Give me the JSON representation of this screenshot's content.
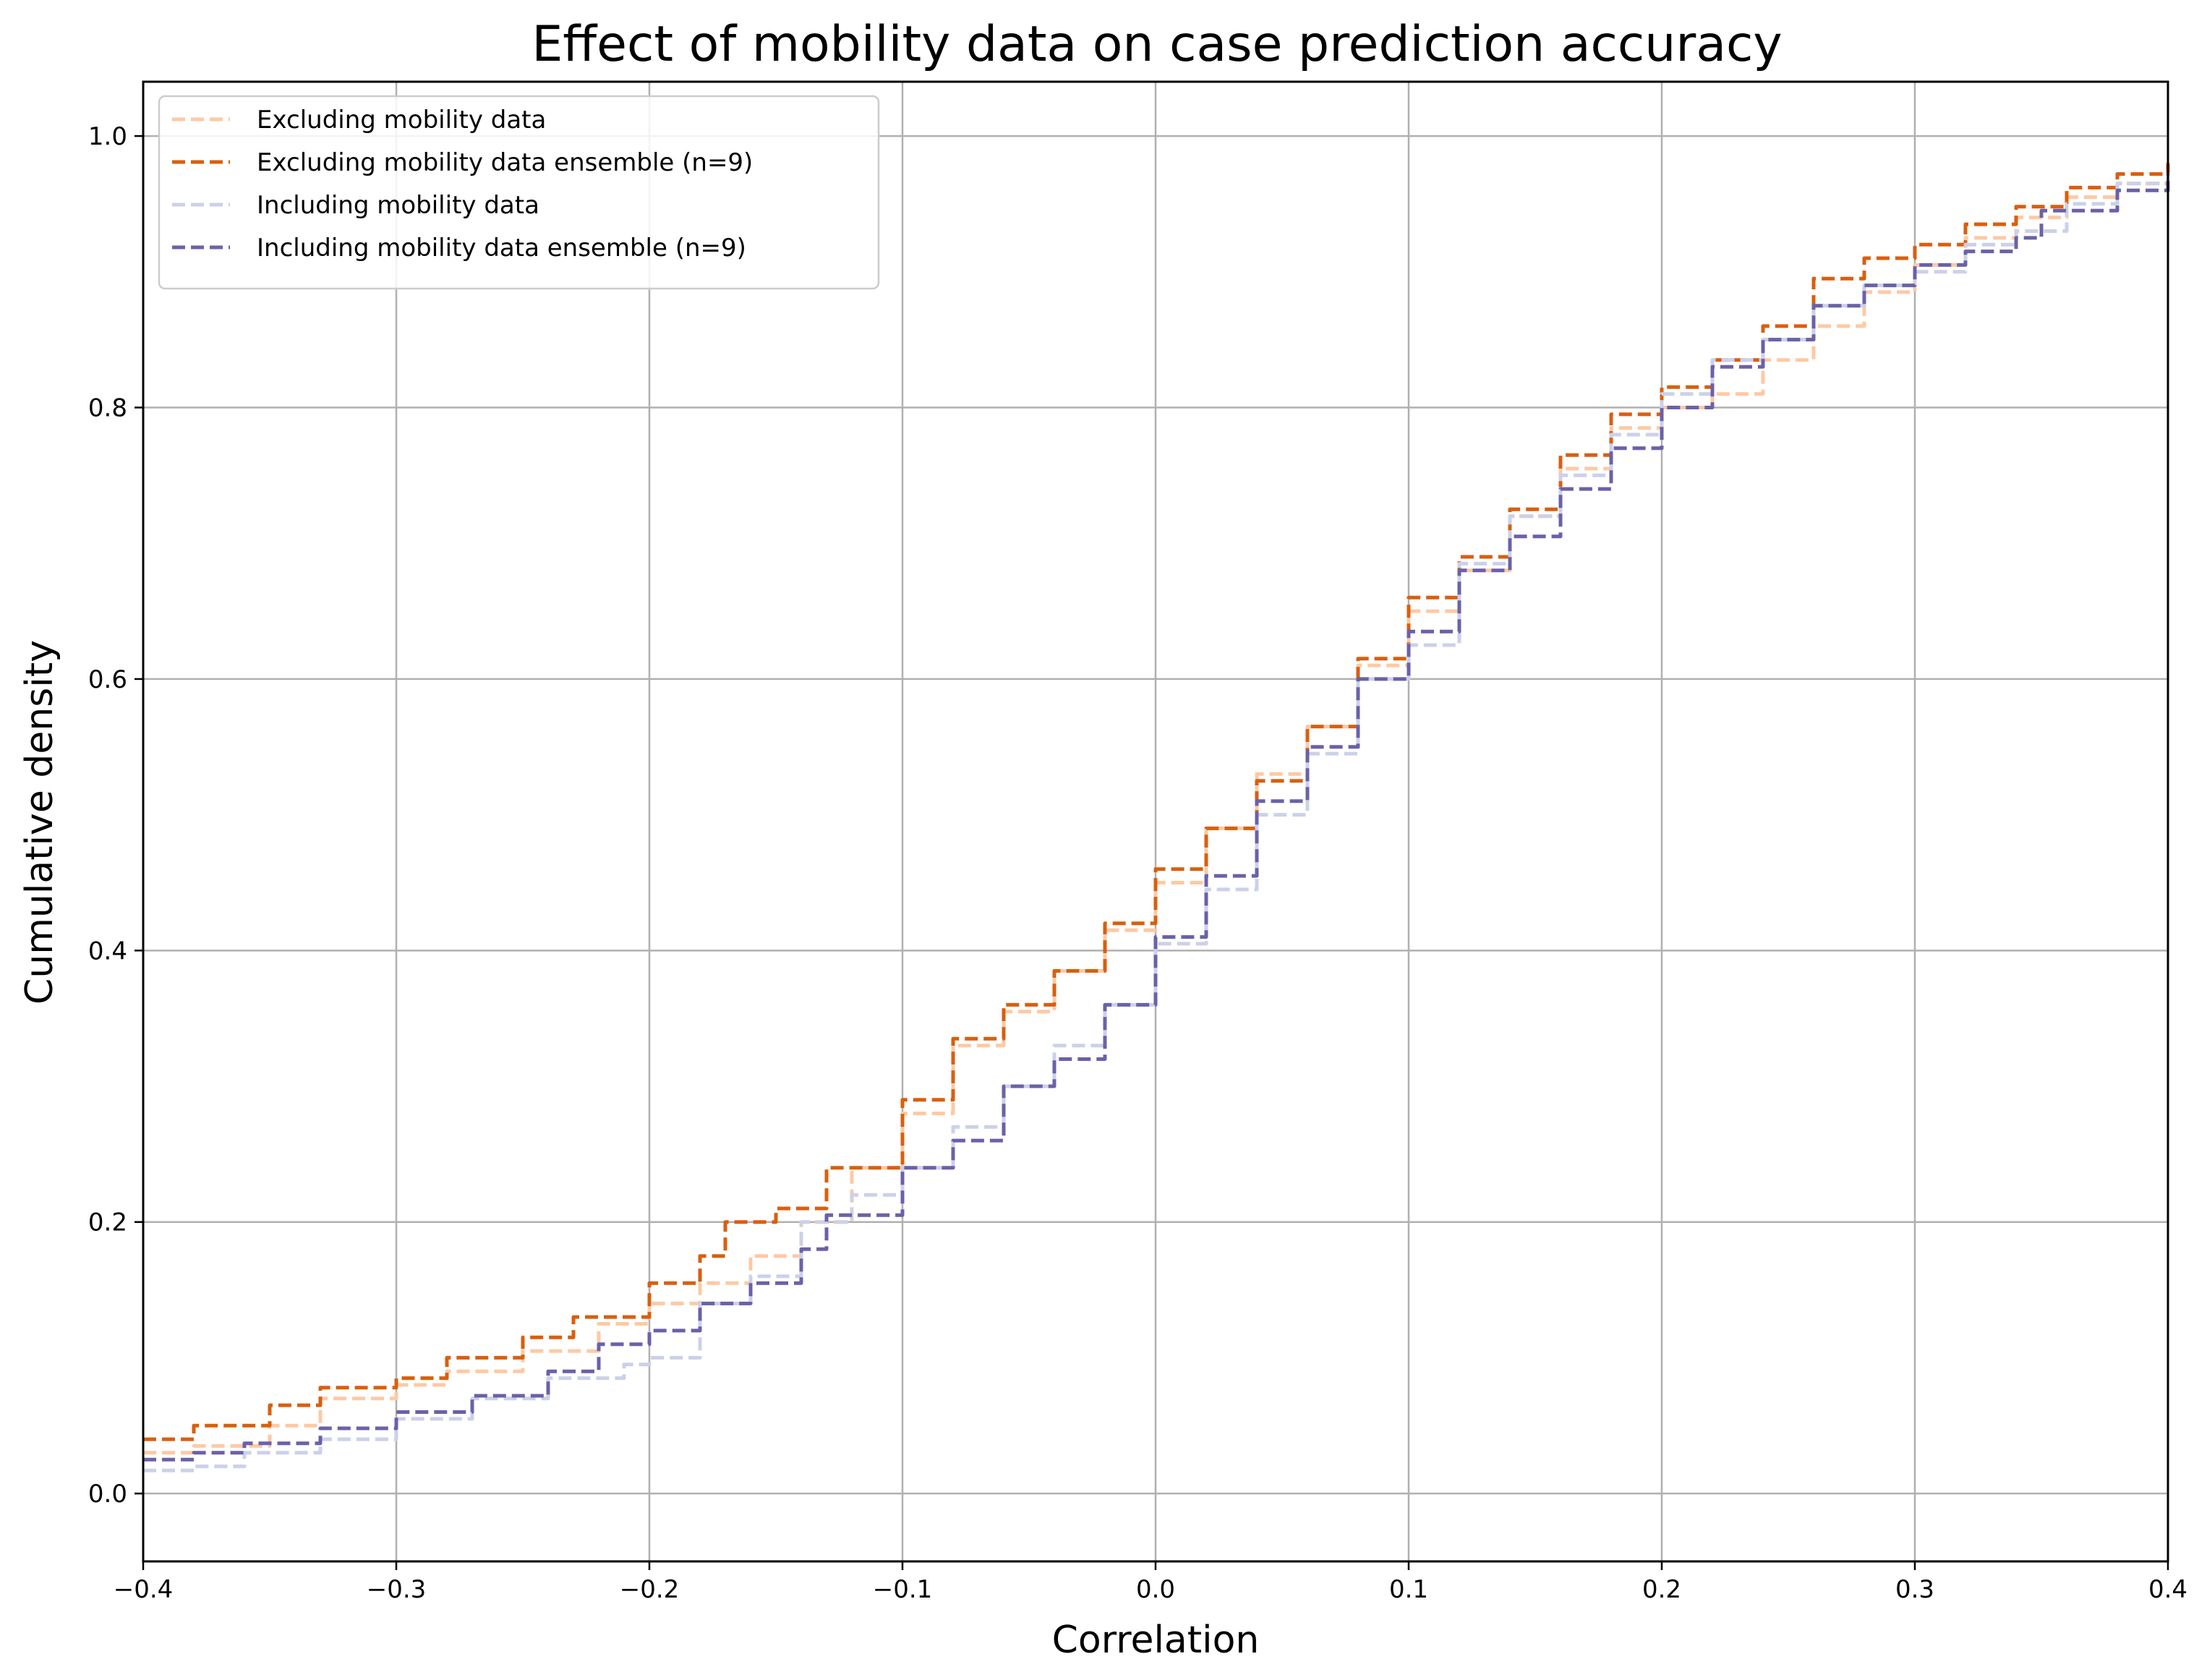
{
  "chart_data": {
    "type": "line",
    "title": "Effect of mobility data on case prediction accuracy",
    "xlabel": "Correlation",
    "ylabel": "Cumulative density",
    "xlim": [
      -0.4,
      0.4
    ],
    "ylim": [
      -0.05,
      1.04
    ],
    "x_ticks": [
      -0.4,
      -0.3,
      -0.2,
      -0.1,
      0.0,
      0.1,
      0.2,
      0.3,
      0.4
    ],
    "x_tick_labels": [
      "−0.4",
      "−0.3",
      "−0.2",
      "−0.1",
      "0.0",
      "0.1",
      "0.2",
      "0.3",
      "0.4"
    ],
    "y_ticks": [
      0.0,
      0.2,
      0.4,
      0.6,
      0.8,
      1.0
    ],
    "y_tick_labels": [
      "0.0",
      "0.2",
      "0.4",
      "0.6",
      "0.8",
      "1.0"
    ],
    "grid": true,
    "legend_position": "top-left",
    "series": [
      {
        "name": "Excluding mobility data",
        "color": "#fdc9a5",
        "style": "dashed",
        "x": [
          -0.4,
          -0.38,
          -0.35,
          -0.33,
          -0.3,
          -0.28,
          -0.25,
          -0.22,
          -0.2,
          -0.18,
          -0.16,
          -0.14,
          -0.12,
          -0.1,
          -0.08,
          -0.06,
          -0.04,
          -0.02,
          0.0,
          0.02,
          0.04,
          0.06,
          0.08,
          0.1,
          0.12,
          0.14,
          0.16,
          0.18,
          0.2,
          0.22,
          0.24,
          0.26,
          0.28,
          0.3,
          0.32,
          0.34,
          0.36,
          0.38,
          0.4
        ],
        "y": [
          0.03,
          0.035,
          0.05,
          0.07,
          0.08,
          0.09,
          0.105,
          0.125,
          0.14,
          0.155,
          0.175,
          0.2,
          0.24,
          0.28,
          0.33,
          0.355,
          0.385,
          0.415,
          0.45,
          0.49,
          0.53,
          0.565,
          0.61,
          0.65,
          0.68,
          0.72,
          0.755,
          0.785,
          0.8,
          0.81,
          0.835,
          0.86,
          0.885,
          0.905,
          0.925,
          0.94,
          0.955,
          0.965,
          0.975
        ]
      },
      {
        "name": "Excluding mobility data ensemble (n=9)",
        "color": "#d95f0e",
        "style": "dashed",
        "x": [
          -0.4,
          -0.38,
          -0.35,
          -0.33,
          -0.3,
          -0.28,
          -0.25,
          -0.23,
          -0.2,
          -0.18,
          -0.17,
          -0.15,
          -0.13,
          -0.1,
          -0.08,
          -0.06,
          -0.04,
          -0.02,
          0.0,
          0.02,
          0.04,
          0.06,
          0.08,
          0.1,
          0.12,
          0.14,
          0.16,
          0.18,
          0.2,
          0.22,
          0.24,
          0.26,
          0.28,
          0.3,
          0.32,
          0.34,
          0.36,
          0.38,
          0.4
        ],
        "y": [
          0.04,
          0.05,
          0.065,
          0.078,
          0.085,
          0.1,
          0.115,
          0.13,
          0.155,
          0.175,
          0.2,
          0.21,
          0.24,
          0.29,
          0.335,
          0.36,
          0.385,
          0.42,
          0.46,
          0.49,
          0.525,
          0.565,
          0.615,
          0.66,
          0.69,
          0.725,
          0.765,
          0.795,
          0.815,
          0.835,
          0.86,
          0.895,
          0.91,
          0.92,
          0.935,
          0.948,
          0.962,
          0.972,
          0.98
        ]
      },
      {
        "name": "Including mobility data",
        "color": "#cbd1e8",
        "style": "dashed",
        "x": [
          -0.4,
          -0.38,
          -0.36,
          -0.33,
          -0.3,
          -0.27,
          -0.24,
          -0.21,
          -0.2,
          -0.18,
          -0.16,
          -0.14,
          -0.12,
          -0.1,
          -0.08,
          -0.06,
          -0.04,
          -0.02,
          0.0,
          0.02,
          0.04,
          0.06,
          0.08,
          0.1,
          0.12,
          0.14,
          0.16,
          0.18,
          0.2,
          0.22,
          0.24,
          0.26,
          0.28,
          0.3,
          0.32,
          0.34,
          0.36,
          0.38,
          0.4
        ],
        "y": [
          0.017,
          0.02,
          0.03,
          0.04,
          0.055,
          0.07,
          0.085,
          0.095,
          0.1,
          0.14,
          0.16,
          0.2,
          0.22,
          0.24,
          0.27,
          0.3,
          0.33,
          0.36,
          0.405,
          0.445,
          0.5,
          0.545,
          0.6,
          0.625,
          0.685,
          0.72,
          0.75,
          0.78,
          0.81,
          0.835,
          0.85,
          0.875,
          0.89,
          0.9,
          0.92,
          0.93,
          0.95,
          0.965,
          0.975
        ]
      },
      {
        "name": "Including mobility data ensemble (n=9)",
        "color": "#6a61a8",
        "style": "dashed",
        "x": [
          -0.4,
          -0.38,
          -0.36,
          -0.33,
          -0.3,
          -0.27,
          -0.24,
          -0.22,
          -0.2,
          -0.18,
          -0.16,
          -0.14,
          -0.13,
          -0.1,
          -0.08,
          -0.06,
          -0.04,
          -0.02,
          0.0,
          0.02,
          0.04,
          0.06,
          0.08,
          0.1,
          0.12,
          0.14,
          0.16,
          0.18,
          0.2,
          0.22,
          0.24,
          0.26,
          0.28,
          0.3,
          0.32,
          0.34,
          0.35,
          0.38,
          0.4
        ],
        "y": [
          0.025,
          0.03,
          0.037,
          0.048,
          0.06,
          0.072,
          0.09,
          0.11,
          0.12,
          0.14,
          0.155,
          0.18,
          0.205,
          0.24,
          0.26,
          0.3,
          0.32,
          0.36,
          0.41,
          0.455,
          0.51,
          0.55,
          0.6,
          0.635,
          0.68,
          0.705,
          0.74,
          0.77,
          0.8,
          0.83,
          0.85,
          0.875,
          0.89,
          0.905,
          0.915,
          0.925,
          0.945,
          0.96,
          0.972
        ]
      }
    ]
  }
}
